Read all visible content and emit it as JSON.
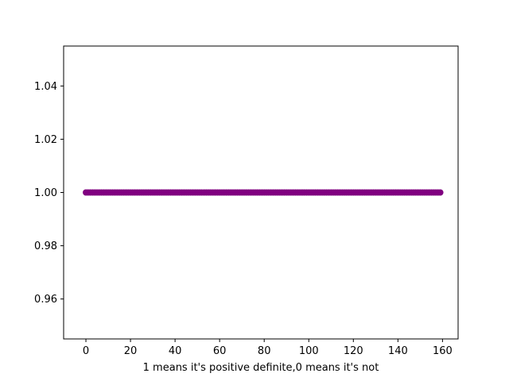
{
  "chart_data": {
    "type": "scatter",
    "title": "",
    "xlabel": "1 means it's positive definite,0 means it's not",
    "ylabel": "",
    "xlim": [
      -10,
      167
    ],
    "ylim": [
      0.945,
      1.055
    ],
    "x_ticks": [
      0,
      20,
      40,
      60,
      80,
      100,
      120,
      140,
      160
    ],
    "x_tick_labels": [
      "0",
      "20",
      "40",
      "60",
      "80",
      "100",
      "120",
      "140",
      "160"
    ],
    "y_ticks": [
      0.96,
      0.98,
      1.0,
      1.02,
      1.04
    ],
    "y_tick_labels": [
      "0.96",
      "0.98",
      "1.00",
      "1.02",
      "1.04"
    ],
    "grid": false,
    "legend": "none",
    "series": [
      {
        "color": "#800080",
        "x_start": 0,
        "x_end": 159,
        "x_step": 1,
        "y_value": 1.0
      }
    ]
  }
}
